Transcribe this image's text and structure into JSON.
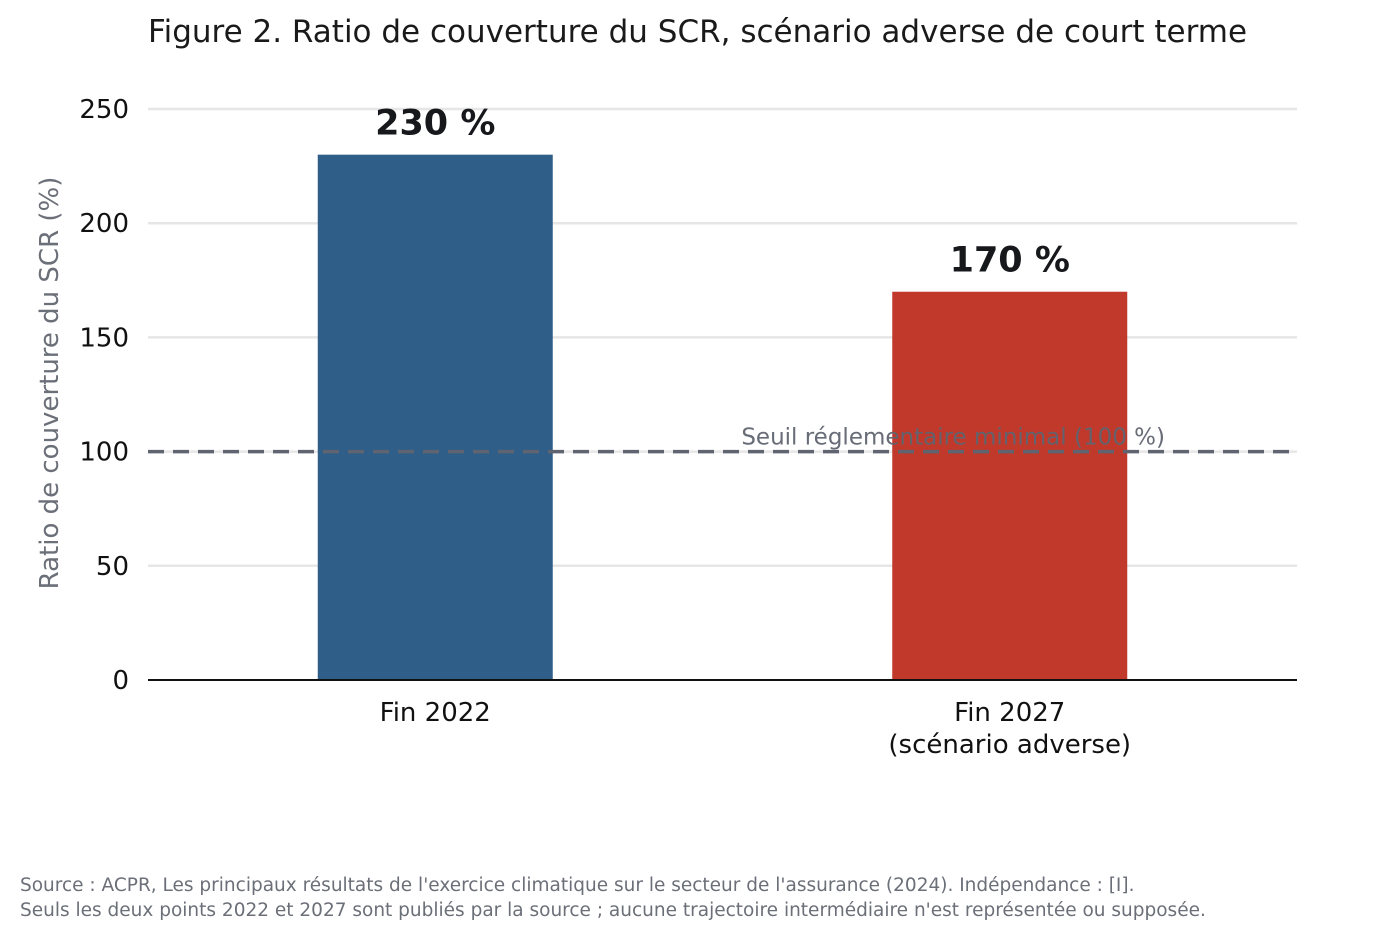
{
  "title": "Figure 2. Ratio de couverture du SCR, scénario adverse de court terme",
  "footer": {
    "line1": "Source : ACPR, Les principaux résultats de l'exercice climatique sur le secteur de l'assurance (2024). Indépendance : [I].",
    "line2": "Seuls les deux points 2022 et 2027 sont publiés par la source ; aucune trajectoire intermédiaire n'est représentée ou supposée."
  },
  "chart_data": {
    "type": "bar",
    "title": "Figure 2. Ratio de couverture du SCR, scénario adverse de court terme",
    "xlabel": "",
    "ylabel": "Ratio de couverture du SCR (%)",
    "ylim": [
      0,
      250
    ],
    "yticks": [
      0,
      50,
      100,
      150,
      200,
      250
    ],
    "grid": "horizontal",
    "categories": [
      [
        "Fin 2022"
      ],
      [
        "Fin 2027",
        "(scénario adverse)"
      ]
    ],
    "values": [
      230,
      170
    ],
    "value_labels": [
      "230 %",
      "170 %"
    ],
    "colors": [
      "#2f5e88",
      "#c0392b"
    ],
    "reference_line": {
      "value": 100,
      "label": "Seuil réglementaire minimal (100 %)",
      "style": "dashed",
      "color": "#5f6470"
    }
  }
}
